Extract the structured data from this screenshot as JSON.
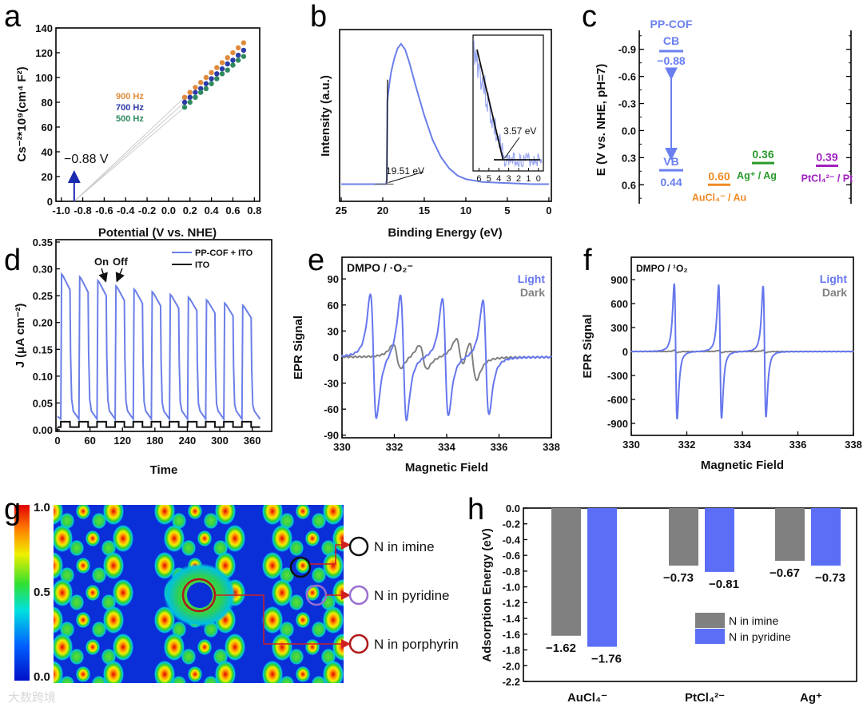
{
  "watermark": "大数跨境",
  "chart_data": [
    {
      "panel": "a",
      "type": "scatter",
      "xlabel": "Potential (V vs. NHE)",
      "ylabel": "Cs⁻²*10⁹(cm⁴ F²)",
      "xlim": [
        -1.05,
        0.85
      ],
      "ylim": [
        0,
        140
      ],
      "xticks": [
        "-1.0",
        "-0.8",
        "-0.6",
        "-0.4",
        "-0.2",
        "0.0",
        "0.2",
        "0.4",
        "0.6",
        "0.8"
      ],
      "yticks": [
        "0",
        "20",
        "40",
        "60",
        "80",
        "100",
        "120",
        "140"
      ],
      "x": [
        0.15,
        0.2,
        0.25,
        0.3,
        0.35,
        0.4,
        0.45,
        0.5,
        0.55,
        0.6,
        0.65,
        0.7
      ],
      "series": [
        {
          "name": "900 Hz",
          "color": "#e08a3c",
          "y": [
            84,
            88,
            92,
            96,
            100,
            104,
            108,
            112,
            116,
            120,
            124,
            128
          ]
        },
        {
          "name": "700 Hz",
          "color": "#2b3aa8",
          "y": [
            80,
            84,
            88,
            91,
            95,
            99,
            103,
            107,
            111,
            114,
            118,
            122
          ]
        },
        {
          "name": "500 Hz",
          "color": "#2f8a5f",
          "y": [
            76,
            80,
            84,
            88,
            91,
            95,
            99,
            103,
            106,
            110,
            114,
            117
          ]
        }
      ],
      "intercept": -0.88,
      "annotation": "−0.88 V"
    },
    {
      "panel": "b",
      "type": "line",
      "xlabel": "Binding Energy (eV)",
      "ylabel": "Intensity (a.u.)",
      "xlim": [
        25,
        -0.3
      ],
      "ylim": [
        -0.1,
        1.1
      ],
      "xticks": [
        "25",
        "20",
        "15",
        "10",
        "5",
        "0"
      ],
      "x": [
        25,
        22,
        20,
        19.6,
        19.51,
        19.45,
        19.2,
        19,
        18.6,
        18.2,
        17.8,
        17.3,
        16.8,
        16,
        15,
        14,
        13,
        12,
        11,
        10,
        8,
        6,
        4,
        2,
        0
      ],
      "y": [
        0.02,
        0.02,
        0.02,
        0.02,
        0.05,
        0.6,
        0.72,
        0.8,
        0.9,
        0.97,
        1.0,
        0.96,
        0.87,
        0.7,
        0.5,
        0.33,
        0.21,
        0.13,
        0.08,
        0.055,
        0.035,
        0.03,
        0.025,
        0.02,
        0.02
      ],
      "cutoff_label": "19.51 eV",
      "inset": {
        "xticks": [
          "6",
          "5",
          "4",
          "3",
          "2",
          "1",
          "0"
        ],
        "xlim": [
          6.6,
          -0.5
        ],
        "edge_label": "3.57 eV"
      }
    },
    {
      "panel": "c",
      "type": "diagram",
      "ylabel": "E (V vs. NHE, pH=7)",
      "ylim": [
        -1.11,
        0.81
      ],
      "yticks": [
        "-0.9",
        "-0.6",
        "-0.3",
        "0.0",
        "0.3",
        "0.6"
      ],
      "title": "PP-COF",
      "levels": [
        {
          "name": "CB",
          "value": -0.88,
          "value_label": "−0.88",
          "color": "#6a7fef"
        },
        {
          "name": "VB",
          "value": 0.44,
          "value_label": "0.44",
          "color": "#6a7fef"
        },
        {
          "name": "AuCl₄⁻ / Au",
          "value": 0.6,
          "value_label": "0.60",
          "color": "#f08a24"
        },
        {
          "name": "Ag⁺ / Ag",
          "value": 0.36,
          "value_label": "0.36",
          "color": "#2a9a2a"
        },
        {
          "name": "PtCl₄²⁻ / Pt",
          "value": 0.39,
          "value_label": "0.39",
          "color": "#a020c0"
        }
      ]
    },
    {
      "panel": "d",
      "type": "line",
      "xlabel": "Time",
      "ylabel": "J (μA cm⁻²)",
      "xlim": [
        -3,
        396
      ],
      "ylim": [
        0,
        0.35
      ],
      "xticks": [
        "0",
        "60",
        "120",
        "180",
        "240",
        "300",
        "360"
      ],
      "yticks": [
        "0.00",
        "0.05",
        "0.10",
        "0.15",
        "0.20",
        "0.25",
        "0.30",
        "0.35"
      ],
      "cycle_start": 6,
      "period": 33.5,
      "on_duration": 17,
      "series": [
        {
          "name": "PP-COF + ITO",
          "color": "#6b7fe8",
          "on": [
            0.29,
            0.285,
            0.278,
            0.268,
            0.262,
            0.257,
            0.252,
            0.247,
            0.242,
            0.236,
            0.232
          ],
          "off": 0.02
        },
        {
          "name": "ITO",
          "color": "#111111",
          "on": [
            0.015,
            0.015,
            0.015,
            0.015,
            0.015,
            0.015,
            0.015,
            0.015,
            0.015,
            0.015,
            0.015
          ],
          "off": 0.005
        }
      ],
      "annotations": [
        "On",
        "Off"
      ]
    },
    {
      "panel": "e",
      "type": "line",
      "title": "DMPO / ·O₂⁻",
      "xlabel": "Magnetic Field",
      "ylabel": "EPR Signal",
      "xlim": [
        330,
        338
      ],
      "ylim": [
        -93,
        115
      ],
      "xticks": [
        "330",
        "332",
        "334",
        "336",
        "338"
      ],
      "yticks": [
        "90",
        "60",
        "30",
        "0",
        "-30",
        "-60",
        "-90"
      ],
      "series": [
        {
          "name": "Light",
          "color": "#6677ee",
          "centers": [
            331.2,
            332.35,
            333.95,
            335.5
          ],
          "amps": [
            72,
            72,
            68,
            66
          ],
          "width": 0.2
        },
        {
          "name": "Dark",
          "color": "#808080",
          "centers": [
            332.1,
            333.1,
            334.5,
            335.0
          ],
          "amps": [
            14,
            14,
            18,
            24
          ],
          "width": 0.25
        }
      ]
    },
    {
      "panel": "f",
      "type": "line",
      "title": "DMPO / ¹O₂",
      "xlabel": "Magnetic Field",
      "ylabel": "EPR Signal",
      "xlim": [
        330,
        338
      ],
      "ylim": [
        -1050,
        1180
      ],
      "xticks": [
        "330",
        "332",
        "334",
        "336",
        "338"
      ],
      "yticks": [
        "900",
        "600",
        "300",
        "0",
        "-300",
        "-600",
        "-900"
      ],
      "series": [
        {
          "name": "Light",
          "color": "#6677ee",
          "centers": [
            331.6,
            333.2,
            334.8
          ],
          "amps": [
            850,
            840,
            820
          ],
          "width": 0.09
        },
        {
          "name": "Dark",
          "color": "#808080",
          "centers": [
            331.6,
            333.2,
            334.8
          ],
          "amps": [
            15,
            15,
            15
          ],
          "width": 0.09
        }
      ]
    },
    {
      "panel": "g",
      "type": "heatmap",
      "colorbar_ticks": [
        "1.0",
        "0.5",
        "0.0"
      ],
      "legend": [
        {
          "name": "N in imine",
          "color": "#111111"
        },
        {
          "name": "N in pyridine",
          "color": "#9a6fd0"
        },
        {
          "name": "N in porphyrin",
          "color": "#b01818"
        }
      ]
    },
    {
      "panel": "h",
      "type": "bar",
      "ylabel": "Adsorption Energy (eV)",
      "ylim": [
        -2.2,
        0
      ],
      "yticks": [
        "0.0",
        "-0.2",
        "-0.4",
        "-0.6",
        "-0.8",
        "-1.0",
        "-1.2",
        "-1.4",
        "-1.6",
        "-1.8",
        "-2.0",
        "-2.2"
      ],
      "categories": [
        "AuCl₄⁻",
        "PtCl₄²⁻",
        "Ag⁺"
      ],
      "series": [
        {
          "name": "N in imine",
          "color": "#808080",
          "values": [
            -1.62,
            -0.73,
            -0.67
          ],
          "labels": [
            "−1.62",
            "−0.73",
            "−0.67"
          ]
        },
        {
          "name": "N in pyridine",
          "color": "#5b6ef5",
          "values": [
            -1.76,
            -0.81,
            -0.73
          ],
          "labels": [
            "−1.76",
            "−0.81",
            "−0.73"
          ]
        }
      ]
    }
  ]
}
